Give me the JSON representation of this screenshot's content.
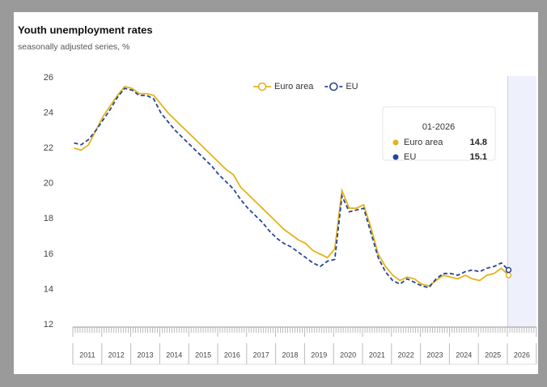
{
  "chart_data": {
    "type": "line",
    "title": "Youth unemployment rates",
    "subtitle": "seasonally adjusted series, %",
    "categories": [
      "2011",
      null,
      null,
      null,
      "2012",
      null,
      null,
      null,
      "2013",
      null,
      null,
      null,
      "2014",
      null,
      null,
      null,
      "2015",
      null,
      null,
      null,
      "2016",
      null,
      null,
      null,
      "2017",
      null,
      null,
      null,
      "2018",
      null,
      null,
      null,
      "2019",
      null,
      null,
      null,
      "2020",
      null,
      null,
      null,
      "2021",
      null,
      null,
      null,
      "2022",
      null,
      null,
      null,
      "2023",
      null,
      null,
      null,
      "2024",
      null,
      null,
      null,
      "2025",
      null,
      null,
      null,
      "2026"
    ],
    "series": [
      {
        "name": "Euro area",
        "color": "#e3b31b",
        "dashed": false,
        "values": [
          22.0,
          21.9,
          22.2,
          23.0,
          23.8,
          24.4,
          25.0,
          25.5,
          25.4,
          25.1,
          25.1,
          25.0,
          24.5,
          24.0,
          23.6,
          23.2,
          22.8,
          22.4,
          22.0,
          21.6,
          21.2,
          20.8,
          20.5,
          19.8,
          19.4,
          19.0,
          18.6,
          18.2,
          17.8,
          17.4,
          17.1,
          16.8,
          16.6,
          16.2,
          16.0,
          15.8,
          16.3,
          19.6,
          18.6,
          18.6,
          18.8,
          17.5,
          16.0,
          15.3,
          14.8,
          14.5,
          14.7,
          14.6,
          14.3,
          14.2,
          14.5,
          14.8,
          14.7,
          14.6,
          14.8,
          14.6,
          14.5,
          14.8,
          14.9,
          15.2,
          14.8
        ]
      },
      {
        "name": "EU",
        "color": "#2a4596",
        "dashed": true,
        "values": [
          22.3,
          22.2,
          22.5,
          23.0,
          23.6,
          24.2,
          24.9,
          25.4,
          25.3,
          25.0,
          25.0,
          24.8,
          24.0,
          23.5,
          23.0,
          22.6,
          22.2,
          21.8,
          21.4,
          21.0,
          20.5,
          20.1,
          19.7,
          19.1,
          18.6,
          18.2,
          17.8,
          17.3,
          16.9,
          16.6,
          16.4,
          16.1,
          15.8,
          15.5,
          15.3,
          15.6,
          15.7,
          19.3,
          18.4,
          18.5,
          18.6,
          17.2,
          15.8,
          15.0,
          14.5,
          14.3,
          14.6,
          14.4,
          14.2,
          14.1,
          14.6,
          14.9,
          14.9,
          14.8,
          15.0,
          15.1,
          15.0,
          15.2,
          15.3,
          15.5,
          15.1
        ]
      }
    ],
    "ylim": [
      12,
      26
    ],
    "yticks": [
      12,
      14,
      16,
      18,
      20,
      22,
      24,
      26
    ],
    "grid": false,
    "legend": "top",
    "tooltip": {
      "title": "01-2026",
      "values": [
        14.8,
        15.1
      ]
    }
  }
}
